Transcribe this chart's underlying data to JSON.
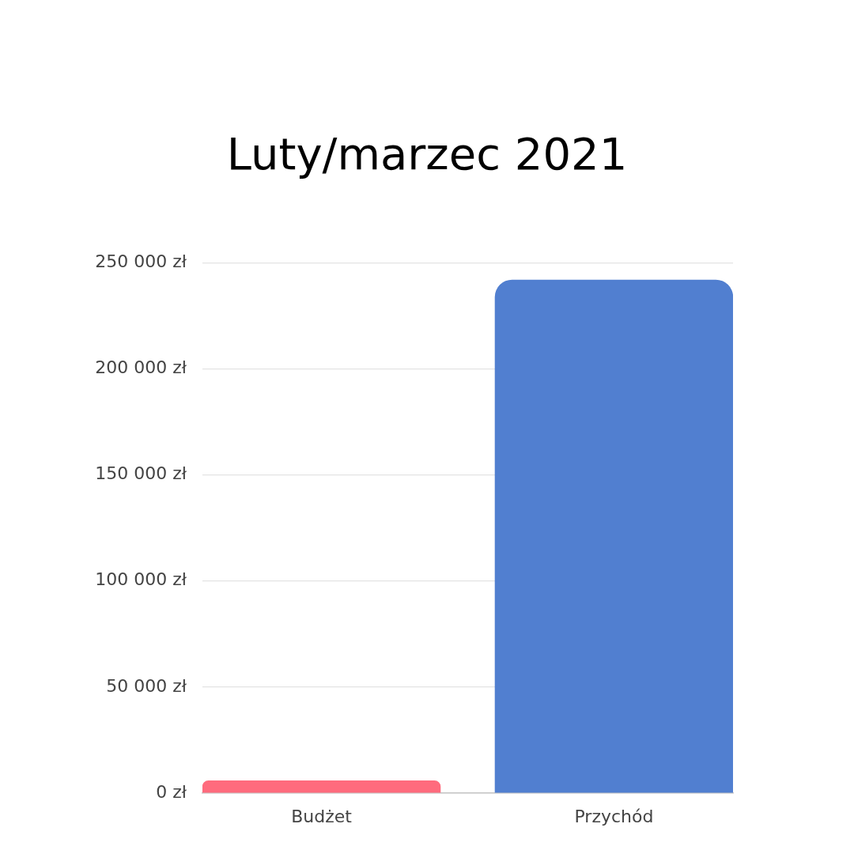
{
  "chart_data": {
    "type": "bar",
    "title": "Luty/marzec 2021",
    "categories": [
      "Budżet",
      "Przychód"
    ],
    "values": [
      6000,
      242000
    ],
    "colors": [
      "#ff6b7d",
      "#517fd0"
    ],
    "ylim": [
      0,
      250000
    ],
    "yticks": [
      {
        "value": 0,
        "label": "0 zł"
      },
      {
        "value": 50000,
        "label": "50 000 zł"
      },
      {
        "value": 100000,
        "label": "100 000 zł"
      },
      {
        "value": 150000,
        "label": "150 000 zł"
      },
      {
        "value": 200000,
        "label": "200 000 zł"
      },
      {
        "value": 250000,
        "label": "250 000 zł"
      }
    ],
    "grid": "y",
    "legend": false
  }
}
